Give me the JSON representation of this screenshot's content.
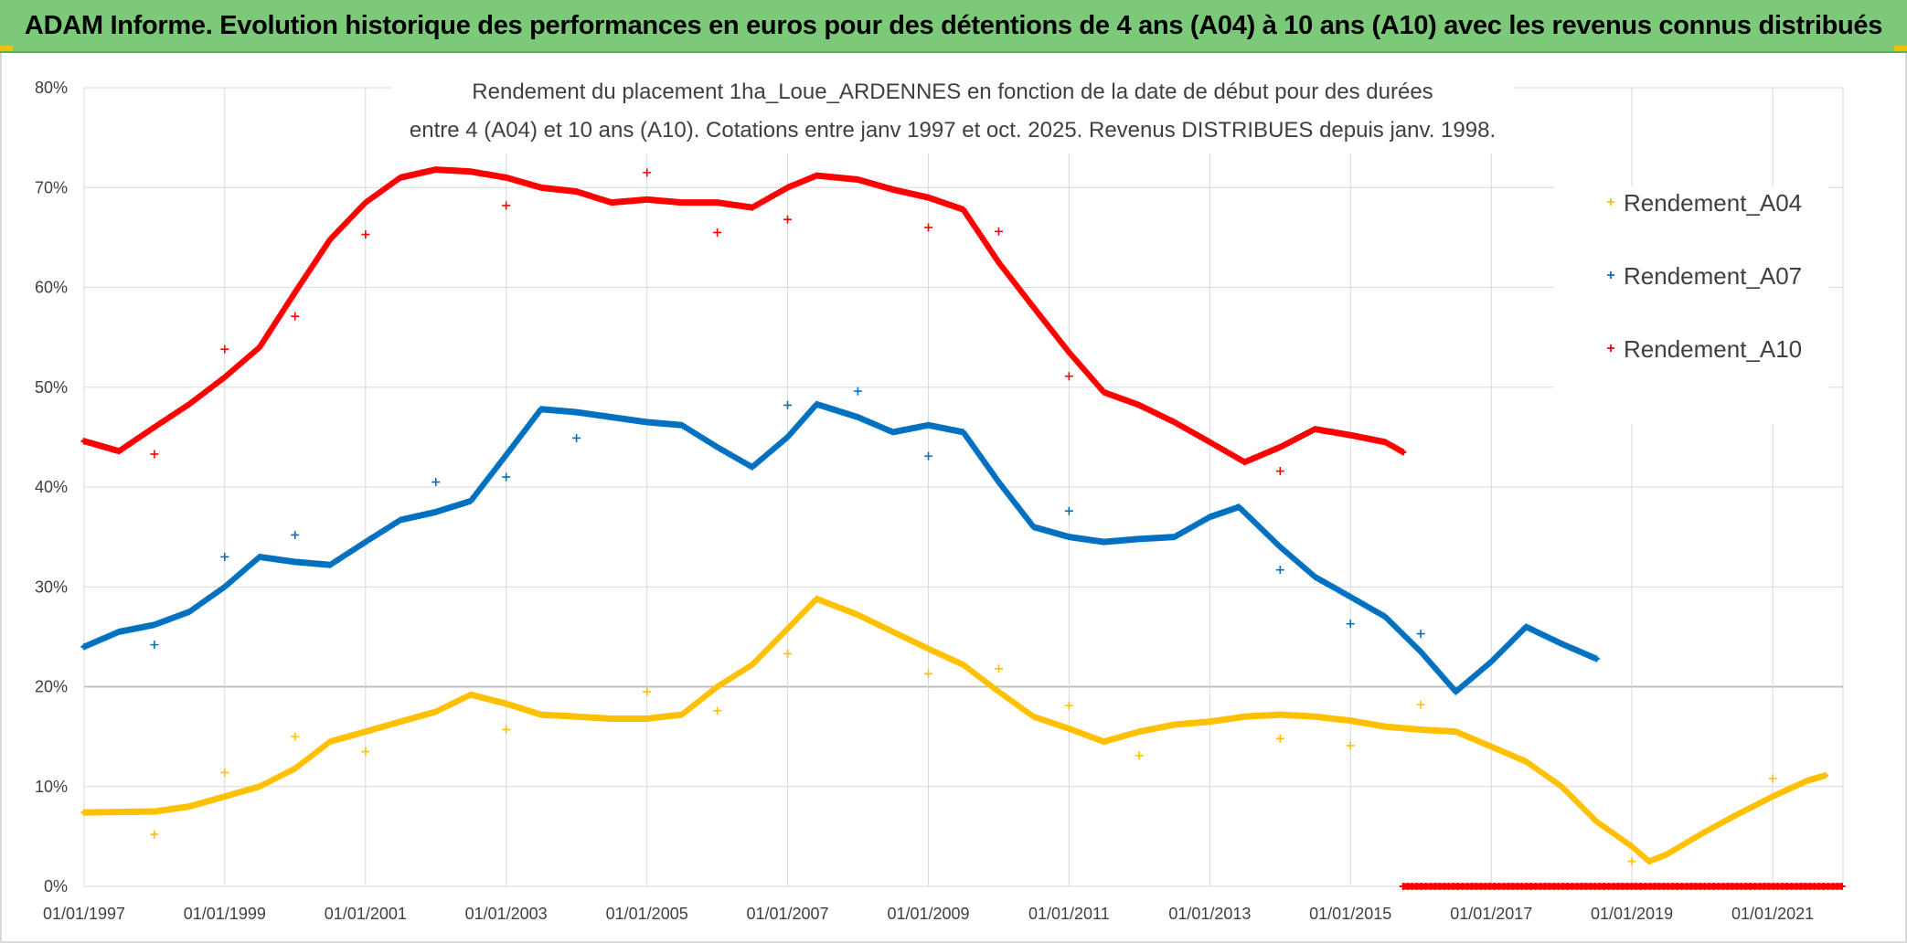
{
  "banner": {
    "title": "ADAM Informe. Evolution historique des performances en euros pour des détentions de 4 ans (A04) à 10 ans (A10) avec les revenus connus distribués"
  },
  "chart_data": {
    "type": "scatter",
    "title_lines": [
      "Rendement du placement 1ha_Loue_ARDENNES en fonction de la date de début pour des durées",
      "entre 4 (A04) et 10 ans (A10). Cotations entre janv 1997 et oct. 2025. Revenus DISTRIBUES depuis janv. 1998."
    ],
    "x_type": "date",
    "xlim": [
      "1997-01-01",
      "2022-01-01"
    ],
    "ylim": [
      0,
      0.8
    ],
    "y_ticks": [
      0,
      0.1,
      0.2,
      0.3,
      0.4,
      0.5,
      0.6,
      0.7,
      0.8
    ],
    "y_tick_labels": [
      "0%",
      "10%",
      "20%",
      "30%",
      "40%",
      "50%",
      "60%",
      "70%",
      "80%"
    ],
    "x_ticks": [
      "1997-01-01",
      "1999-01-01",
      "2001-01-01",
      "2003-01-01",
      "2005-01-01",
      "2007-01-01",
      "2009-01-01",
      "2011-01-01",
      "2013-01-01",
      "2015-01-01",
      "2017-01-01",
      "2019-01-01",
      "2021-01-01"
    ],
    "x_tick_labels": [
      "01/01/1997",
      "01/01/1999",
      "01/01/2001",
      "01/01/2003",
      "01/01/2005",
      "01/01/2007",
      "01/01/2009",
      "01/01/2011",
      "01/01/2013",
      "01/01/2015",
      "01/01/2017",
      "01/01/2019",
      "01/01/2021"
    ],
    "grid": true,
    "legend_position": "right",
    "marker": "+",
    "series": [
      {
        "name": "Rendement_A04",
        "color": "#ffc000",
        "points": [
          [
            "1997-01-01",
            0.074
          ],
          [
            "1998-01-01",
            0.075
          ],
          [
            "1998-07-01",
            0.08
          ],
          [
            "1999-01-01",
            0.09
          ],
          [
            "1999-07-01",
            0.1
          ],
          [
            "2000-01-01",
            0.118
          ],
          [
            "2000-07-01",
            0.145
          ],
          [
            "2001-01-01",
            0.155
          ],
          [
            "2001-07-01",
            0.165
          ],
          [
            "2002-01-01",
            0.175
          ],
          [
            "2002-07-01",
            0.192
          ],
          [
            "2003-01-01",
            0.183
          ],
          [
            "2003-07-01",
            0.172
          ],
          [
            "2004-01-01",
            0.17
          ],
          [
            "2004-07-01",
            0.168
          ],
          [
            "2005-01-01",
            0.168
          ],
          [
            "2005-07-01",
            0.172
          ],
          [
            "2006-01-01",
            0.2
          ],
          [
            "2006-07-01",
            0.222
          ],
          [
            "2007-01-01",
            0.258
          ],
          [
            "2007-06-01",
            0.288
          ],
          [
            "2008-01-01",
            0.272
          ],
          [
            "2008-07-01",
            0.255
          ],
          [
            "2009-01-01",
            0.238
          ],
          [
            "2009-07-01",
            0.222
          ],
          [
            "2010-01-01",
            0.195
          ],
          [
            "2010-07-01",
            0.17
          ],
          [
            "2011-01-01",
            0.158
          ],
          [
            "2011-07-01",
            0.145
          ],
          [
            "2012-01-01",
            0.155
          ],
          [
            "2012-07-01",
            0.162
          ],
          [
            "2013-01-01",
            0.165
          ],
          [
            "2013-07-01",
            0.17
          ],
          [
            "2014-01-01",
            0.172
          ],
          [
            "2014-07-01",
            0.17
          ],
          [
            "2015-01-01",
            0.166
          ],
          [
            "2015-07-01",
            0.16
          ],
          [
            "2016-01-01",
            0.157
          ],
          [
            "2016-07-01",
            0.155
          ],
          [
            "2017-01-01",
            0.14
          ],
          [
            "2017-07-01",
            0.125
          ],
          [
            "2018-01-01",
            0.1
          ],
          [
            "2018-07-01",
            0.065
          ],
          [
            "2019-01-01",
            0.04
          ],
          [
            "2019-04-01",
            0.025
          ],
          [
            "2019-07-01",
            0.032
          ],
          [
            "2020-01-01",
            0.053
          ],
          [
            "2020-07-01",
            0.072
          ],
          [
            "2021-01-01",
            0.09
          ],
          [
            "2021-07-01",
            0.106
          ],
          [
            "2021-10-01",
            0.111
          ]
        ],
        "outliers": [
          [
            "1998-01-01",
            0.052
          ],
          [
            "1999-01-01",
            0.114
          ],
          [
            "2000-01-01",
            0.15
          ],
          [
            "2001-01-01",
            0.135
          ],
          [
            "2003-01-01",
            0.157
          ],
          [
            "2005-01-01",
            0.195
          ],
          [
            "2006-01-01",
            0.176
          ],
          [
            "2007-01-01",
            0.233
          ],
          [
            "2009-01-01",
            0.213
          ],
          [
            "2010-01-01",
            0.218
          ],
          [
            "2011-01-01",
            0.181
          ],
          [
            "2012-01-01",
            0.131
          ],
          [
            "2014-01-01",
            0.148
          ],
          [
            "2015-01-01",
            0.141
          ],
          [
            "2016-01-01",
            0.182
          ],
          [
            "2019-01-01",
            0.025
          ],
          [
            "2021-01-01",
            0.108
          ]
        ]
      },
      {
        "name": "Rendement_A07",
        "color": "#0070c0",
        "points": [
          [
            "1997-01-01",
            0.24
          ],
          [
            "1997-07-01",
            0.255
          ],
          [
            "1998-01-01",
            0.262
          ],
          [
            "1998-07-01",
            0.275
          ],
          [
            "1999-01-01",
            0.3
          ],
          [
            "1999-07-01",
            0.33
          ],
          [
            "2000-01-01",
            0.325
          ],
          [
            "2000-07-01",
            0.322
          ],
          [
            "2001-01-01",
            0.345
          ],
          [
            "2001-07-01",
            0.367
          ],
          [
            "2002-01-01",
            0.375
          ],
          [
            "2002-07-01",
            0.386
          ],
          [
            "2003-01-01",
            0.432
          ],
          [
            "2003-07-01",
            0.478
          ],
          [
            "2004-01-01",
            0.475
          ],
          [
            "2004-07-01",
            0.47
          ],
          [
            "2005-01-01",
            0.465
          ],
          [
            "2005-07-01",
            0.462
          ],
          [
            "2006-01-01",
            0.44
          ],
          [
            "2006-07-01",
            0.42
          ],
          [
            "2007-01-01",
            0.45
          ],
          [
            "2007-06-01",
            0.483
          ],
          [
            "2008-01-01",
            0.47
          ],
          [
            "2008-07-01",
            0.455
          ],
          [
            "2009-01-01",
            0.462
          ],
          [
            "2009-07-01",
            0.455
          ],
          [
            "2010-01-01",
            0.405
          ],
          [
            "2010-07-01",
            0.36
          ],
          [
            "2011-01-01",
            0.35
          ],
          [
            "2011-07-01",
            0.345
          ],
          [
            "2012-01-01",
            0.348
          ],
          [
            "2012-07-01",
            0.35
          ],
          [
            "2013-01-01",
            0.37
          ],
          [
            "2013-06-01",
            0.38
          ],
          [
            "2014-01-01",
            0.34
          ],
          [
            "2014-07-01",
            0.31
          ],
          [
            "2015-01-01",
            0.29
          ],
          [
            "2015-07-01",
            0.27
          ],
          [
            "2016-01-01",
            0.235
          ],
          [
            "2016-07-01",
            0.195
          ],
          [
            "2017-01-01",
            0.225
          ],
          [
            "2017-07-01",
            0.26
          ],
          [
            "2018-01-01",
            0.243
          ],
          [
            "2018-07-01",
            0.228
          ]
        ],
        "outliers": [
          [
            "1998-01-01",
            0.242
          ],
          [
            "1999-01-01",
            0.33
          ],
          [
            "2000-01-01",
            0.352
          ],
          [
            "2002-01-01",
            0.405
          ],
          [
            "2003-01-01",
            0.41
          ],
          [
            "2004-01-01",
            0.449
          ],
          [
            "2007-01-01",
            0.482
          ],
          [
            "2008-01-01",
            0.496
          ],
          [
            "2009-01-01",
            0.431
          ],
          [
            "2011-01-01",
            0.376
          ],
          [
            "2014-01-01",
            0.317
          ],
          [
            "2015-01-01",
            0.263
          ],
          [
            "2016-01-01",
            0.253
          ]
        ]
      },
      {
        "name": "Rendement_A10",
        "color": "#ff0000",
        "points": [
          [
            "1997-01-01",
            0.446
          ],
          [
            "1997-07-01",
            0.436
          ],
          [
            "1998-01-01",
            0.46
          ],
          [
            "1998-07-01",
            0.483
          ],
          [
            "1999-01-01",
            0.51
          ],
          [
            "1999-07-01",
            0.54
          ],
          [
            "2000-01-01",
            0.595
          ],
          [
            "2000-07-01",
            0.648
          ],
          [
            "2001-01-01",
            0.685
          ],
          [
            "2001-07-01",
            0.71
          ],
          [
            "2002-01-01",
            0.718
          ],
          [
            "2002-07-01",
            0.716
          ],
          [
            "2003-01-01",
            0.71
          ],
          [
            "2003-07-01",
            0.7
          ],
          [
            "2004-01-01",
            0.696
          ],
          [
            "2004-07-01",
            0.685
          ],
          [
            "2005-01-01",
            0.688
          ],
          [
            "2005-07-01",
            0.685
          ],
          [
            "2006-01-01",
            0.685
          ],
          [
            "2006-07-01",
            0.68
          ],
          [
            "2007-01-01",
            0.7
          ],
          [
            "2007-06-01",
            0.712
          ],
          [
            "2008-01-01",
            0.708
          ],
          [
            "2008-07-01",
            0.698
          ],
          [
            "2009-01-01",
            0.69
          ],
          [
            "2009-07-01",
            0.678
          ],
          [
            "2010-01-01",
            0.625
          ],
          [
            "2010-07-01",
            0.58
          ],
          [
            "2011-01-01",
            0.535
          ],
          [
            "2011-07-01",
            0.495
          ],
          [
            "2012-01-01",
            0.482
          ],
          [
            "2012-07-01",
            0.465
          ],
          [
            "2013-01-01",
            0.445
          ],
          [
            "2013-07-01",
            0.425
          ],
          [
            "2014-01-01",
            0.44
          ],
          [
            "2014-07-01",
            0.458
          ],
          [
            "2015-01-01",
            0.452
          ],
          [
            "2015-07-01",
            0.445
          ],
          [
            "2015-10-01",
            0.435
          ]
        ],
        "outliers": [
          [
            "1998-01-01",
            0.433
          ],
          [
            "1999-01-01",
            0.538
          ],
          [
            "2000-01-01",
            0.571
          ],
          [
            "2001-01-01",
            0.653
          ],
          [
            "2003-01-01",
            0.682
          ],
          [
            "2005-01-01",
            0.715
          ],
          [
            "2006-01-01",
            0.655
          ],
          [
            "2007-01-01",
            0.668
          ],
          [
            "2009-01-01",
            0.66
          ],
          [
            "2010-01-01",
            0.656
          ],
          [
            "2011-01-01",
            0.511
          ],
          [
            "2014-01-01",
            0.416
          ]
        ],
        "zero_segment": [
          "2015-10-01",
          "2022-01-01"
        ]
      }
    ]
  }
}
